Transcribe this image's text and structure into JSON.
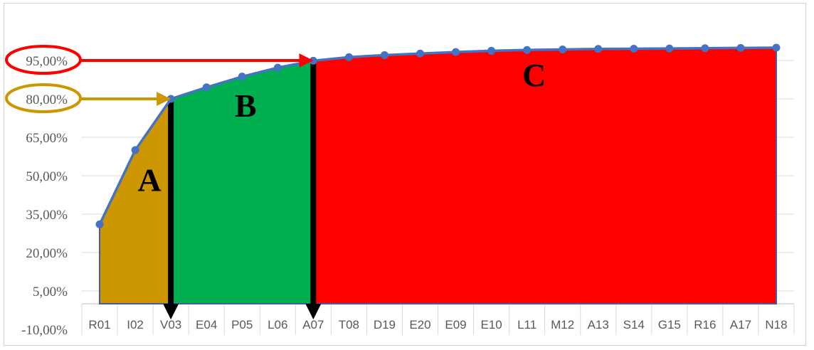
{
  "chart_data": {
    "type": "area",
    "categories": [
      "R01",
      "I02",
      "V03",
      "E04",
      "P05",
      "L06",
      "A07",
      "T08",
      "D19",
      "E20",
      "E09",
      "E10",
      "L11",
      "M12",
      "A13",
      "S14",
      "G15",
      "R16",
      "A17",
      "N18"
    ],
    "series": [
      {
        "values": [
          31.0,
          60.0,
          80.0,
          84.5,
          88.7,
          92.2,
          94.9,
          96.3,
          97.1,
          97.7,
          98.3,
          98.8,
          99.1,
          99.3,
          99.5,
          99.6,
          99.7,
          99.8,
          99.9,
          100.0
        ]
      }
    ],
    "y_tick_labels": [
      "-10,00%",
      "5,00%",
      "20,00%",
      "35,00%",
      "50,00%",
      "65,00%",
      "80,00%",
      "95,00%"
    ],
    "y_ticks": [
      -10,
      5,
      20,
      35,
      50,
      65,
      80,
      95
    ],
    "ylim": [
      -10,
      102
    ],
    "grid": true,
    "zones": [
      {
        "label": "A",
        "from_index": 0,
        "to_index": 2,
        "color": "#cc9600"
      },
      {
        "label": "B",
        "from_index": 2,
        "to_index": 6,
        "color": "#00b050"
      },
      {
        "label": "C",
        "from_index": 6,
        "to_index": 19,
        "color": "#ff0000"
      }
    ],
    "thresholds": [
      {
        "value": 80,
        "tick_label": "80,00%",
        "color": "#cc9600",
        "to_index": 2
      },
      {
        "value": 95,
        "tick_label": "95,00%",
        "color": "#ff0000",
        "to_index": 6
      }
    ],
    "line_color": "#4472c4",
    "area_floor": 0
  }
}
